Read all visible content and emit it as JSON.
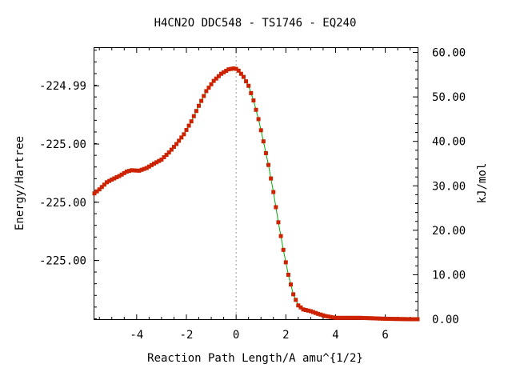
{
  "chart_data": {
    "type": "line",
    "title": "H4CN2O   DDC548 - TS1746 - EQ240",
    "xlabel": "Reaction Path Length/A amu^{1/2}",
    "ylabel_left": "Energy/Hartree",
    "ylabel_right": "kJ/mol",
    "xlim": [
      -5.7,
      7.3
    ],
    "ylim_kj": [
      0,
      61
    ],
    "x_ticks": [
      -4,
      -2,
      0,
      2,
      4,
      6
    ],
    "x_tick_labels": [
      "-4",
      "-2",
      "0",
      "2",
      "4",
      "6"
    ],
    "right_ticks": [
      0,
      10,
      20,
      30,
      40,
      50,
      60
    ],
    "right_tick_labels": [
      "0.00",
      "10.00",
      "20.00",
      "30.00",
      "40.00",
      "50.00",
      "60.00"
    ],
    "left_ticks_kj": [
      52.5,
      39.4,
      26.3,
      13.2
    ],
    "left_tick_labels": [
      "-224.99",
      "-225.00",
      "-225.00",
      "-225.00"
    ],
    "ts_x": 0,
    "grid": false,
    "colors": {
      "line": "#00aa00",
      "marker": "#cc2200",
      "ts_line": "#999999"
    },
    "series": [
      {
        "x": [
          -5.7,
          -5.5,
          -5.2,
          -5.0,
          -4.7,
          -4.4,
          -4.2,
          -3.9,
          -3.6,
          -3.3,
          -3.0,
          -2.7,
          -2.4,
          -2.1,
          -1.8,
          -1.5,
          -1.2,
          -0.9,
          -0.6,
          -0.3,
          -0.1,
          0.0,
          0.1,
          0.3,
          0.5,
          0.7,
          0.9,
          1.1,
          1.3,
          1.5,
          1.7,
          1.9,
          2.1,
          2.3,
          2.5,
          2.7,
          3.0,
          3.3,
          3.6,
          4.0,
          4.5,
          5.0,
          5.5,
          6.0,
          6.5,
          7.0,
          7.3
        ],
        "y": [
          28.3,
          29.2,
          30.8,
          31.4,
          32.2,
          33.2,
          33.5,
          33.4,
          34.0,
          35.0,
          35.9,
          37.5,
          39.4,
          41.6,
          44.5,
          48.0,
          51.3,
          53.6,
          55.2,
          56.2,
          56.4,
          56.3,
          55.9,
          54.5,
          52.5,
          49.2,
          45.0,
          40.0,
          34.7,
          28.6,
          21.8,
          15.6,
          10.0,
          5.6,
          3.1,
          2.2,
          1.8,
          1.2,
          0.7,
          0.3,
          0.3,
          0.3,
          0.2,
          0.1,
          0.05,
          0.0,
          0.0
        ]
      }
    ]
  }
}
